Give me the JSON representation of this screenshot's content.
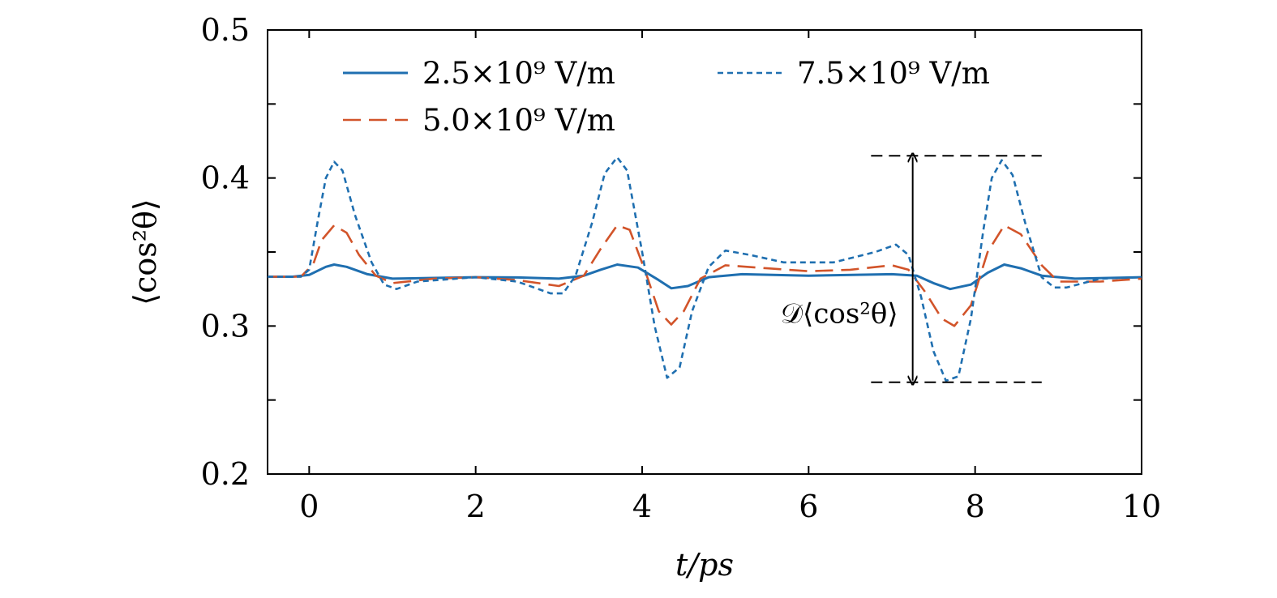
{
  "chart_data": {
    "type": "line",
    "title": "",
    "xlabel": "t/ps",
    "ylabel": "⟨cos²θ⟩",
    "xlim": [
      -0.5,
      10
    ],
    "ylim": [
      0.2,
      0.5
    ],
    "xticks": [
      0,
      2,
      4,
      6,
      8,
      10
    ],
    "xtick_labels": [
      "0",
      "2",
      "4",
      "6",
      "8",
      "10"
    ],
    "yticks": [
      0.2,
      0.25,
      0.3,
      0.35,
      0.4,
      0.45,
      0.5
    ],
    "ytick_labels": [
      "0.2",
      "",
      "0.3",
      "",
      "0.4",
      "",
      "0.5"
    ],
    "grid": false,
    "legend_position": "top",
    "series": [
      {
        "name": "2.5×10⁹ V/m",
        "style": "solid",
        "color": "#1f6fb0",
        "points": [
          [
            -0.5,
            0.3333
          ],
          [
            -0.2,
            0.3333
          ],
          [
            0.0,
            0.3345
          ],
          [
            0.2,
            0.34
          ],
          [
            0.3,
            0.3415
          ],
          [
            0.45,
            0.34
          ],
          [
            0.7,
            0.335
          ],
          [
            1.0,
            0.332
          ],
          [
            1.5,
            0.3325
          ],
          [
            2.0,
            0.333
          ],
          [
            2.5,
            0.3328
          ],
          [
            3.0,
            0.332
          ],
          [
            3.3,
            0.334
          ],
          [
            3.5,
            0.338
          ],
          [
            3.7,
            0.3415
          ],
          [
            3.95,
            0.3395
          ],
          [
            4.2,
            0.331
          ],
          [
            4.35,
            0.3255
          ],
          [
            4.55,
            0.327
          ],
          [
            4.8,
            0.333
          ],
          [
            5.2,
            0.335
          ],
          [
            6.0,
            0.334
          ],
          [
            7.0,
            0.335
          ],
          [
            7.3,
            0.334
          ],
          [
            7.5,
            0.329
          ],
          [
            7.7,
            0.325
          ],
          [
            7.95,
            0.328
          ],
          [
            8.15,
            0.336
          ],
          [
            8.35,
            0.3415
          ],
          [
            8.55,
            0.339
          ],
          [
            8.8,
            0.334
          ],
          [
            9.2,
            0.332
          ],
          [
            10.0,
            0.333
          ]
        ]
      },
      {
        "name": "5.0×10⁹ V/m",
        "style": "dashed",
        "color": "#d2542a",
        "points": [
          [
            -0.5,
            0.3333
          ],
          [
            -0.1,
            0.3333
          ],
          [
            0.05,
            0.342
          ],
          [
            0.15,
            0.358
          ],
          [
            0.3,
            0.368
          ],
          [
            0.45,
            0.363
          ],
          [
            0.6,
            0.348
          ],
          [
            0.8,
            0.334
          ],
          [
            1.0,
            0.329
          ],
          [
            1.5,
            0.332
          ],
          [
            2.0,
            0.333
          ],
          [
            2.5,
            0.331
          ],
          [
            3.0,
            0.327
          ],
          [
            3.3,
            0.334
          ],
          [
            3.5,
            0.352
          ],
          [
            3.7,
            0.368
          ],
          [
            3.85,
            0.365
          ],
          [
            4.05,
            0.335
          ],
          [
            4.2,
            0.31
          ],
          [
            4.35,
            0.301
          ],
          [
            4.5,
            0.31
          ],
          [
            4.7,
            0.332
          ],
          [
            5.0,
            0.341
          ],
          [
            5.5,
            0.339
          ],
          [
            6.0,
            0.337
          ],
          [
            6.5,
            0.338
          ],
          [
            7.0,
            0.341
          ],
          [
            7.2,
            0.338
          ],
          [
            7.4,
            0.323
          ],
          [
            7.6,
            0.305
          ],
          [
            7.75,
            0.3
          ],
          [
            7.95,
            0.314
          ],
          [
            8.15,
            0.35
          ],
          [
            8.35,
            0.368
          ],
          [
            8.55,
            0.362
          ],
          [
            8.8,
            0.341
          ],
          [
            9.0,
            0.33
          ],
          [
            9.5,
            0.33
          ],
          [
            10.0,
            0.332
          ]
        ]
      },
      {
        "name": "7.5×10⁹ V/m",
        "style": "dotted",
        "color": "#1f6fb0",
        "points": [
          [
            -0.5,
            0.3333
          ],
          [
            -0.1,
            0.3333
          ],
          [
            0.0,
            0.338
          ],
          [
            0.1,
            0.37
          ],
          [
            0.2,
            0.4
          ],
          [
            0.3,
            0.411
          ],
          [
            0.4,
            0.405
          ],
          [
            0.55,
            0.375
          ],
          [
            0.75,
            0.343
          ],
          [
            0.9,
            0.328
          ],
          [
            1.05,
            0.325
          ],
          [
            1.3,
            0.33
          ],
          [
            2.0,
            0.333
          ],
          [
            2.5,
            0.33
          ],
          [
            2.9,
            0.322
          ],
          [
            3.05,
            0.322
          ],
          [
            3.2,
            0.334
          ],
          [
            3.4,
            0.37
          ],
          [
            3.55,
            0.403
          ],
          [
            3.7,
            0.414
          ],
          [
            3.82,
            0.405
          ],
          [
            4.0,
            0.35
          ],
          [
            4.15,
            0.3
          ],
          [
            4.3,
            0.265
          ],
          [
            4.45,
            0.272
          ],
          [
            4.6,
            0.31
          ],
          [
            4.8,
            0.34
          ],
          [
            5.0,
            0.351
          ],
          [
            5.3,
            0.348
          ],
          [
            5.7,
            0.343
          ],
          [
            6.3,
            0.343
          ],
          [
            6.8,
            0.35
          ],
          [
            7.05,
            0.355
          ],
          [
            7.2,
            0.348
          ],
          [
            7.35,
            0.32
          ],
          [
            7.5,
            0.283
          ],
          [
            7.65,
            0.263
          ],
          [
            7.8,
            0.266
          ],
          [
            7.95,
            0.305
          ],
          [
            8.1,
            0.365
          ],
          [
            8.2,
            0.4
          ],
          [
            8.32,
            0.412
          ],
          [
            8.45,
            0.402
          ],
          [
            8.6,
            0.37
          ],
          [
            8.8,
            0.333
          ],
          [
            8.95,
            0.326
          ],
          [
            9.1,
            0.326
          ],
          [
            9.5,
            0.332
          ],
          [
            10.0,
            0.333
          ]
        ]
      }
    ],
    "annotations": {
      "label": "𝒟⟨cos²θ⟩",
      "arrow_x": 7.25,
      "top_y": 0.415,
      "bottom_y": 0.262,
      "top_line_x": [
        6.75,
        8.8
      ],
      "bottom_line_x": [
        6.75,
        8.8
      ]
    }
  }
}
